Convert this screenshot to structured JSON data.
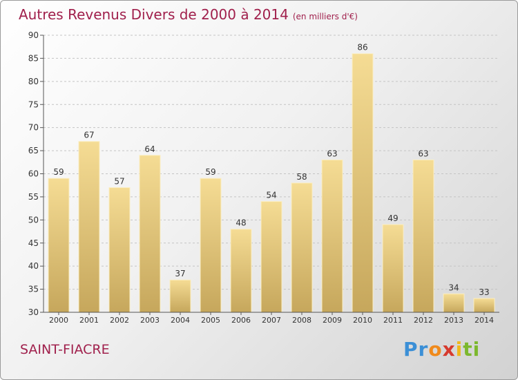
{
  "title": "Autres Revenus Divers de 2000 à 2014",
  "unit": "(en milliers d'€)",
  "location": "SAINT-FIACRE",
  "logo": {
    "p1": "Pr",
    "p2": "o",
    "p3": "x",
    "p4": "i",
    "p5": "ti"
  },
  "colors": {
    "bar_light": "#f5dc94",
    "bar_dark": "#c6a75c",
    "title": "#a0204c",
    "grid": "#c4c4c4"
  },
  "chart_data": {
    "type": "bar",
    "categories": [
      "2000",
      "2001",
      "2002",
      "2003",
      "2004",
      "2005",
      "2006",
      "2007",
      "2008",
      "2009",
      "2010",
      "2011",
      "2012",
      "2013",
      "2014"
    ],
    "values": [
      59,
      67,
      57,
      64,
      37,
      59,
      48,
      54,
      58,
      63,
      86,
      49,
      63,
      34,
      33
    ],
    "ylim": [
      30,
      90
    ],
    "yticks": [
      30,
      35,
      40,
      45,
      50,
      55,
      60,
      65,
      70,
      75,
      80,
      85,
      90
    ],
    "grid": true
  }
}
